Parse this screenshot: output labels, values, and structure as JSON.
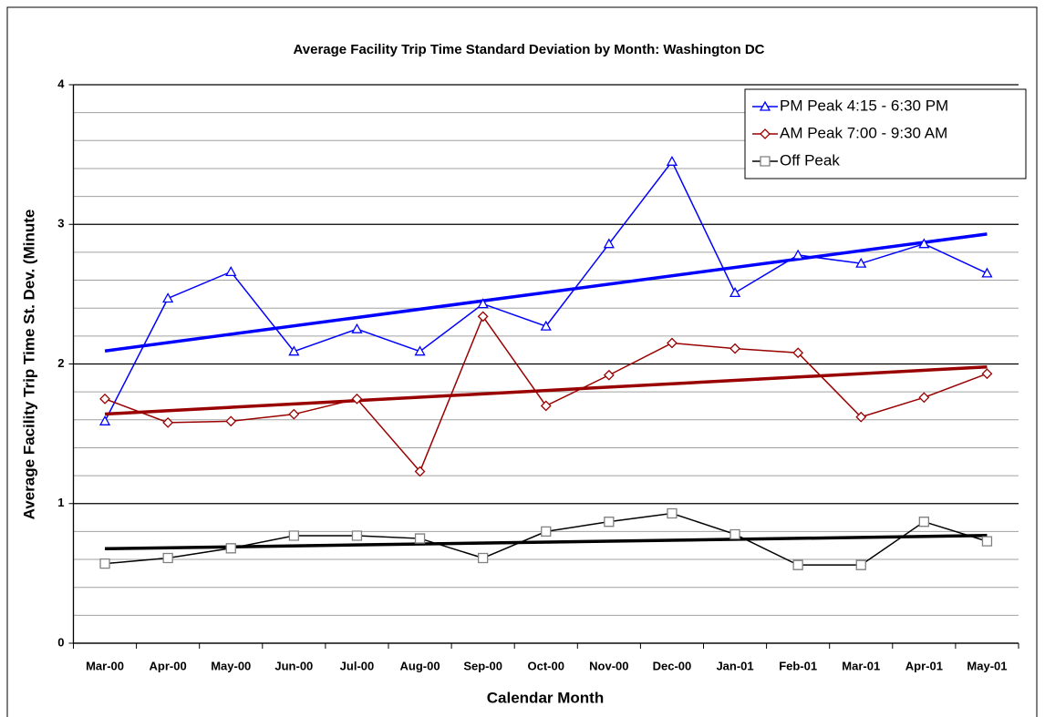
{
  "chart_data": {
    "type": "line",
    "title": "Average Facility Trip Time Standard Deviation by Month: Washington DC",
    "x_label": "Calendar Month",
    "y_label": "Average Facility Trip Time St. Dev. (Minute",
    "categories": [
      "Mar-00",
      "Apr-00",
      "May-00",
      "Jun-00",
      "Jul-00",
      "Aug-00",
      "Sep-00",
      "Oct-00",
      "Nov-00",
      "Dec-00",
      "Jan-01",
      "Feb-01",
      "Mar-01",
      "Apr-01",
      "May-01"
    ],
    "ylim": [
      0,
      4
    ],
    "yticks": [
      0,
      1,
      2,
      3,
      4
    ],
    "minor_yticks": [
      0.2,
      0.4,
      0.6,
      0.8,
      1.2,
      1.4,
      1.6,
      1.8,
      2.2,
      2.4,
      2.6,
      2.8,
      3.2,
      3.4,
      3.6,
      3.8
    ],
    "grid": true,
    "legend": "upper right",
    "trendline": "linear",
    "series": [
      {
        "name": "PM Peak 4:15 - 6:30 PM",
        "color": "#0000ff",
        "marker": "triangle",
        "values": [
          1.59,
          2.47,
          2.66,
          2.09,
          2.25,
          2.09,
          2.43,
          2.27,
          2.86,
          3.45,
          2.51,
          2.78,
          2.72,
          2.86,
          2.65
        ]
      },
      {
        "name": "AM Peak 7:00 - 9:30 AM",
        "color": "#990000",
        "marker": "diamond",
        "values": [
          1.75,
          1.58,
          1.59,
          1.64,
          1.75,
          1.23,
          2.34,
          1.7,
          1.92,
          2.15,
          2.11,
          2.08,
          1.62,
          1.76,
          1.93
        ]
      },
      {
        "name": "Off Peak",
        "color": "#000000",
        "marker_color": "#808080",
        "marker": "square",
        "values": [
          0.57,
          0.61,
          0.68,
          0.77,
          0.77,
          0.75,
          0.61,
          0.8,
          0.87,
          0.93,
          0.78,
          0.56,
          0.56,
          0.87,
          0.73
        ]
      }
    ]
  }
}
